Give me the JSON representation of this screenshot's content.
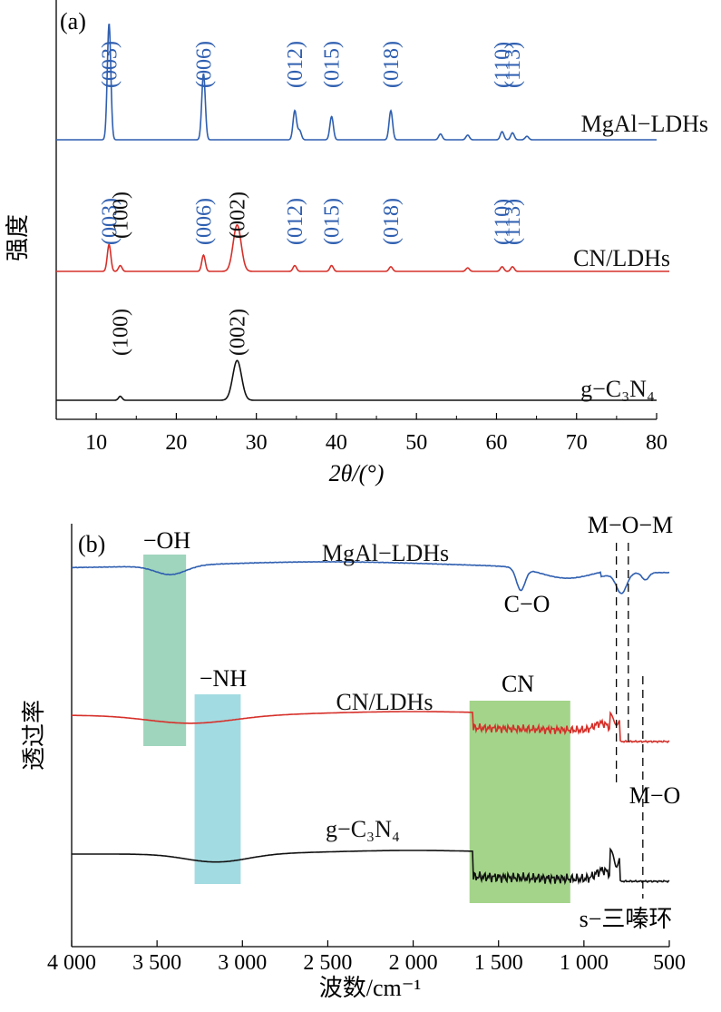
{
  "chart_data": [
    {
      "type": "line",
      "panel_label": "(a)",
      "ylabel": "强度",
      "xlabel": "2θ/(°)",
      "xlim": [
        5,
        80
      ],
      "xticks": [
        "10",
        "20",
        "30",
        "40",
        "50",
        "60",
        "70",
        "80"
      ],
      "series": [
        {
          "name": "MgAl−LDHs",
          "color": "#2f5fb0",
          "peaks": [
            [
              11.6,
              1.0
            ],
            [
              23.4,
              0.57
            ],
            [
              34.8,
              0.25
            ],
            [
              35.4,
              0.08
            ],
            [
              39.4,
              0.2
            ],
            [
              46.8,
              0.25
            ],
            [
              53.0,
              0.05
            ],
            [
              56.4,
              0.04
            ],
            [
              60.7,
              0.07
            ],
            [
              62.0,
              0.06
            ],
            [
              63.8,
              0.03
            ]
          ],
          "peak_labels": [
            {
              "x": 11.6,
              "text": "(003)",
              "color": "#2f5fb0"
            },
            {
              "x": 23.4,
              "text": "(006)",
              "color": "#2f5fb0"
            },
            {
              "x": 34.8,
              "text": "(012)",
              "color": "#2f5fb0"
            },
            {
              "x": 39.4,
              "text": "(015)",
              "color": "#2f5fb0"
            },
            {
              "x": 46.8,
              "text": "(018)",
              "color": "#2f5fb0"
            },
            {
              "x": 60.7,
              "text": "(110)",
              "color": "#2f5fb0"
            },
            {
              "x": 62.0,
              "text": "(113)",
              "color": "#2f5fb0"
            }
          ]
        },
        {
          "name": "CN/LDHs",
          "color": "#d6302a",
          "peaks": [
            [
              11.6,
              0.23
            ],
            [
              13.0,
              0.05
            ],
            [
              23.4,
              0.14
            ],
            [
              27.6,
              0.4
            ],
            [
              34.8,
              0.05
            ],
            [
              39.4,
              0.05
            ],
            [
              46.8,
              0.04
            ],
            [
              56.4,
              0.03
            ],
            [
              60.7,
              0.04
            ],
            [
              62.0,
              0.04
            ]
          ],
          "peak_labels": [
            {
              "x": 11.6,
              "text": "(003)",
              "color": "#2f5fb0"
            },
            {
              "x": 13.0,
              "text": "(100)",
              "color": "#111111"
            },
            {
              "x": 23.4,
              "text": "(006)",
              "color": "#2f5fb0"
            },
            {
              "x": 27.6,
              "text": "(002)",
              "color": "#111111"
            },
            {
              "x": 34.8,
              "text": "(012)",
              "color": "#2f5fb0"
            },
            {
              "x": 39.4,
              "text": "(015)",
              "color": "#2f5fb0"
            },
            {
              "x": 46.8,
              "text": "(018)",
              "color": "#2f5fb0"
            },
            {
              "x": 60.7,
              "text": "(110)",
              "color": "#2f5fb0"
            },
            {
              "x": 62.0,
              "text": "(113)",
              "color": "#2f5fb0"
            }
          ]
        },
        {
          "name": "g−C₃N₄",
          "color": "#111111",
          "peaks": [
            [
              13.0,
              0.06
            ],
            [
              27.6,
              0.6
            ]
          ],
          "peak_labels": [
            {
              "x": 13.0,
              "text": "(100)",
              "color": "#111111"
            },
            {
              "x": 27.6,
              "text": "(002)",
              "color": "#111111"
            }
          ]
        }
      ]
    },
    {
      "type": "line",
      "panel_label": "(b)",
      "ylabel": "透过率",
      "xlabel": "波数/cm⁻¹",
      "xlim": [
        4000,
        500
      ],
      "xticks": [
        "4 000",
        "3 500",
        "3 000",
        "2 500",
        "2 000",
        "1 500",
        "1 000",
        "500"
      ],
      "series": [
        {
          "name": "MgAl−LDHs",
          "color": "#2f5fb0"
        },
        {
          "name": "CN/LDHs",
          "color": "#d6302a"
        },
        {
          "name": "g−C₃N₄",
          "color": "#111111"
        }
      ],
      "bands": [
        {
          "label": "−OH",
          "from": 3580,
          "to": 3330,
          "color": "#9fd4bd"
        },
        {
          "label": "−NH",
          "from": 3280,
          "to": 3010,
          "color": "#a3dbe2"
        },
        {
          "label": "CN",
          "from": 1670,
          "to": 1080,
          "color": "#a4d48a"
        }
      ],
      "annotations": [
        "C−O",
        "M−O−M",
        "M−O",
        "s−三嗪环"
      ],
      "dashed_lines_at": [
        810,
        740,
        655
      ]
    }
  ]
}
